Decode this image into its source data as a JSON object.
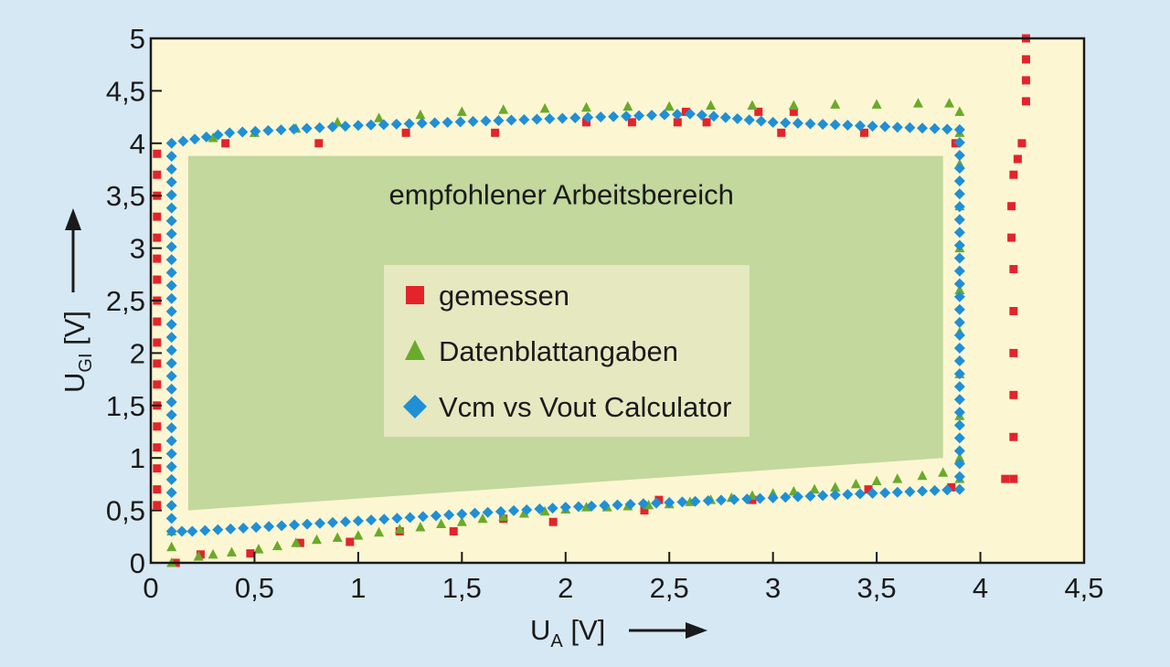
{
  "chart_data": {
    "type": "scatter",
    "xlabel": "U",
    "xlabel_sub": "A",
    "xlabel_unit": "[V]",
    "ylabel": "U",
    "ylabel_sub": "GI",
    "ylabel_unit": "[V]",
    "xlim": [
      0,
      4.5
    ],
    "ylim": [
      0,
      5
    ],
    "xticks": [
      0,
      0.5,
      1,
      1.5,
      2,
      2.5,
      3,
      3.5,
      4,
      4.5
    ],
    "xtick_labels": [
      "0",
      "0,5",
      "1",
      "1,5",
      "2",
      "2,5",
      "3",
      "3,5",
      "4",
      "4,5"
    ],
    "yticks": [
      0,
      0.5,
      1,
      1.5,
      2,
      2.5,
      3,
      3.5,
      4,
      4.5,
      5
    ],
    "ytick_labels": [
      "0",
      "0,5",
      "1",
      "1,5",
      "2",
      "2,5",
      "3",
      "3,5",
      "4",
      "4,5",
      "5"
    ],
    "grid": false,
    "legend_position": "center",
    "colors": {
      "background": "#fdf6d2",
      "page": "#d6e8f3",
      "region": "#c3d89c",
      "legend_box": "#e6e8c0",
      "gemessen": "#e3242b",
      "datenblatt": "#6aaa2a",
      "calculator": "#1f8fd6"
    },
    "region": {
      "label": "empfohlener Arbeitsbereich",
      "polygon": [
        [
          0.18,
          3.88
        ],
        [
          3.82,
          3.88
        ],
        [
          3.82,
          1.0
        ],
        [
          0.18,
          0.5
        ]
      ]
    },
    "series": [
      {
        "name": "gemessen",
        "marker": "square",
        "color": "#e3242b",
        "points": [
          [
            0.03,
            3.9
          ],
          [
            0.03,
            3.7
          ],
          [
            0.03,
            3.5
          ],
          [
            0.03,
            3.3
          ],
          [
            0.03,
            3.1
          ],
          [
            0.03,
            2.9
          ],
          [
            0.03,
            2.7
          ],
          [
            0.03,
            2.5
          ],
          [
            0.03,
            2.3
          ],
          [
            0.03,
            2.1
          ],
          [
            0.03,
            1.9
          ],
          [
            0.03,
            1.7
          ],
          [
            0.03,
            1.5
          ],
          [
            0.03,
            1.3
          ],
          [
            0.03,
            1.1
          ],
          [
            0.03,
            0.9
          ],
          [
            0.03,
            0.7
          ],
          [
            0.03,
            0.55
          ],
          [
            0.12,
            0.0
          ],
          [
            0.24,
            0.08
          ],
          [
            0.36,
            4.0
          ],
          [
            0.48,
            0.09
          ],
          [
            0.72,
            0.19
          ],
          [
            0.81,
            4.0
          ],
          [
            0.96,
            0.2
          ],
          [
            1.2,
            0.3
          ],
          [
            1.23,
            4.1
          ],
          [
            1.46,
            0.3
          ],
          [
            1.66,
            4.1
          ],
          [
            1.7,
            0.42
          ],
          [
            1.94,
            0.39
          ],
          [
            2.1,
            4.2
          ],
          [
            2.32,
            4.2
          ],
          [
            2.38,
            0.5
          ],
          [
            2.45,
            0.6
          ],
          [
            2.54,
            4.2
          ],
          [
            2.58,
            4.3
          ],
          [
            2.68,
            4.2
          ],
          [
            2.9,
            0.6
          ],
          [
            2.93,
            4.3
          ],
          [
            3.04,
            4.1
          ],
          [
            3.1,
            4.3
          ],
          [
            3.44,
            4.1
          ],
          [
            3.46,
            0.7
          ],
          [
            3.86,
            0.72
          ],
          [
            3.88,
            4.0
          ],
          [
            4.12,
            0.8
          ],
          [
            4.16,
            0.8
          ],
          [
            4.16,
            1.2
          ],
          [
            4.16,
            1.6
          ],
          [
            4.16,
            2.0
          ],
          [
            4.16,
            2.4
          ],
          [
            4.16,
            2.8
          ],
          [
            4.15,
            3.1
          ],
          [
            4.15,
            3.4
          ],
          [
            4.16,
            3.7
          ],
          [
            4.18,
            3.85
          ],
          [
            4.2,
            4.0
          ],
          [
            4.22,
            4.4
          ],
          [
            4.22,
            4.6
          ],
          [
            4.22,
            4.8
          ],
          [
            4.22,
            5.0
          ]
        ]
      },
      {
        "name": "Datenblattangaben",
        "marker": "triangle",
        "color": "#6aaa2a",
        "points": [
          [
            0.1,
            0.0
          ],
          [
            0.23,
            0.06
          ],
          [
            0.3,
            0.08
          ],
          [
            0.39,
            0.1
          ],
          [
            0.52,
            0.13
          ],
          [
            0.61,
            0.16
          ],
          [
            0.7,
            0.19
          ],
          [
            0.8,
            0.22
          ],
          [
            0.9,
            0.24
          ],
          [
            1.0,
            0.26
          ],
          [
            1.1,
            0.29
          ],
          [
            1.2,
            0.32
          ],
          [
            1.3,
            0.34
          ],
          [
            1.4,
            0.37
          ],
          [
            1.5,
            0.39
          ],
          [
            1.6,
            0.42
          ],
          [
            1.7,
            0.44
          ],
          [
            1.8,
            0.47
          ],
          [
            1.9,
            0.49
          ],
          [
            2.0,
            0.51
          ],
          [
            2.1,
            0.53
          ],
          [
            2.2,
            0.53
          ],
          [
            2.3,
            0.54
          ],
          [
            2.4,
            0.55
          ],
          [
            2.5,
            0.56
          ],
          [
            2.6,
            0.58
          ],
          [
            2.7,
            0.6
          ],
          [
            2.8,
            0.62
          ],
          [
            2.9,
            0.64
          ],
          [
            3.0,
            0.66
          ],
          [
            3.1,
            0.68
          ],
          [
            3.2,
            0.7
          ],
          [
            3.3,
            0.72
          ],
          [
            3.4,
            0.75
          ],
          [
            3.5,
            0.78
          ],
          [
            3.6,
            0.8
          ],
          [
            3.72,
            0.83
          ],
          [
            3.82,
            0.86
          ],
          [
            0.3,
            4.05
          ],
          [
            0.5,
            4.1
          ],
          [
            0.7,
            4.14
          ],
          [
            0.9,
            4.2
          ],
          [
            1.1,
            4.24
          ],
          [
            1.3,
            4.27
          ],
          [
            1.5,
            4.3
          ],
          [
            1.7,
            4.32
          ],
          [
            1.9,
            4.33
          ],
          [
            2.1,
            4.34
          ],
          [
            2.3,
            4.35
          ],
          [
            2.5,
            4.35
          ],
          [
            2.7,
            4.36
          ],
          [
            2.9,
            4.36
          ],
          [
            3.1,
            4.36
          ],
          [
            3.3,
            4.37
          ],
          [
            3.5,
            4.37
          ],
          [
            3.7,
            4.38
          ],
          [
            3.85,
            4.38
          ],
          [
            3.9,
            4.3
          ],
          [
            3.9,
            4.1
          ],
          [
            3.9,
            3.8
          ],
          [
            3.9,
            3.4
          ],
          [
            3.9,
            3.0
          ],
          [
            3.9,
            2.6
          ],
          [
            3.9,
            2.2
          ],
          [
            3.9,
            1.8
          ],
          [
            3.9,
            1.4
          ],
          [
            3.9,
            1.0
          ],
          [
            3.9,
            0.8
          ],
          [
            0.1,
            0.15
          ],
          [
            0.1,
            0.3
          ]
        ]
      },
      {
        "name": "Vcm vs Vout Calculator",
        "marker": "diamond",
        "color": "#1f8fd6",
        "points": [
          [
            0.1,
            0.3
          ],
          [
            0.1,
            4.0
          ],
          [
            0.38,
            4.1
          ],
          [
            1.0,
            4.17
          ],
          [
            2.6,
            4.28
          ],
          [
            3.0,
            4.2
          ],
          [
            3.9,
            4.13
          ],
          [
            3.9,
            0.7
          ],
          [
            3.0,
            0.62
          ],
          [
            2.0,
            0.53
          ],
          [
            1.0,
            0.4
          ],
          [
            0.2,
            0.3
          ]
        ],
        "path": "closed"
      }
    ]
  }
}
